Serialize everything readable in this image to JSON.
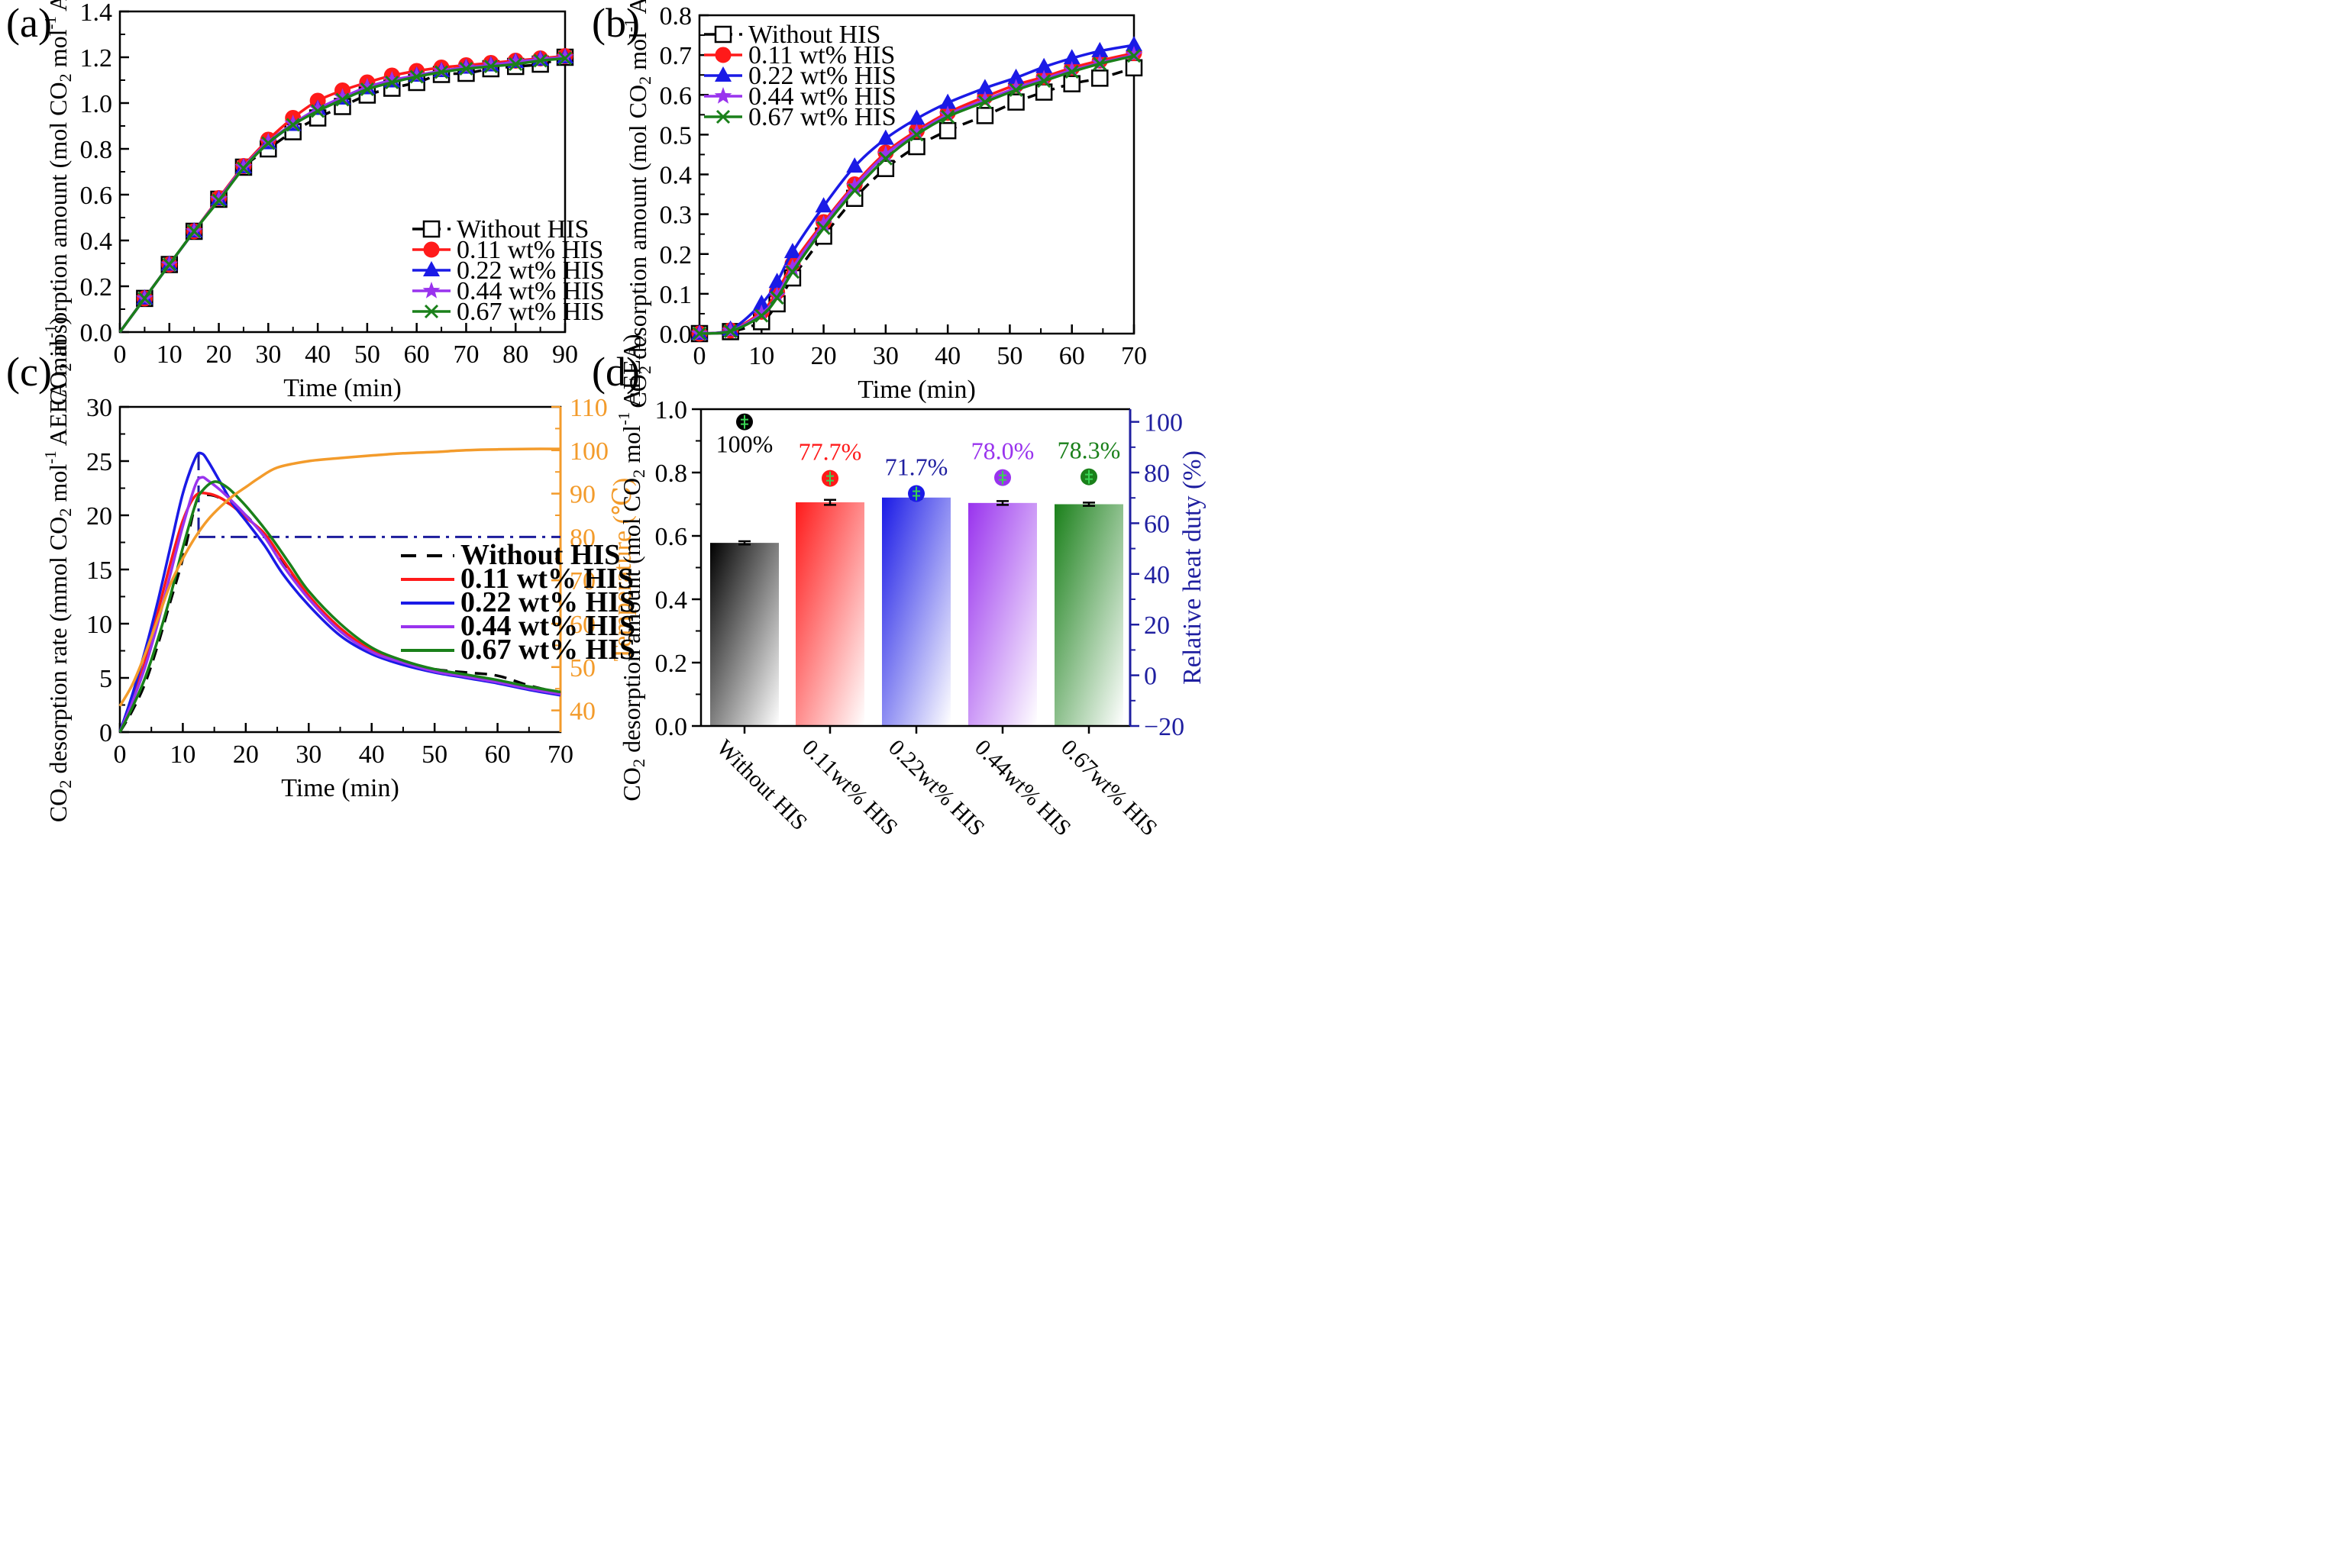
{
  "colors": {
    "black": "#000000",
    "red": "#ff1a1a",
    "blue": "#1a1ae6",
    "purple": "#9933ee",
    "green": "#1a801a",
    "orange": "#f39b2b",
    "navy": "#1f1fa0",
    "dashdot": "#1c1c9c"
  },
  "chart_data": [
    {
      "panel": "(a)",
      "type": "line",
      "xlabel": "Time (min)",
      "ylabel_parts": [
        "CO",
        "2",
        " absorption amount (mol CO",
        "2",
        " mol",
        "-1",
        " AEEA)"
      ],
      "xlim": [
        0,
        90
      ],
      "ylim": [
        0,
        1.4
      ],
      "xticks": [
        0,
        10,
        20,
        30,
        40,
        50,
        60,
        70,
        80,
        90
      ],
      "yticks": [
        0.0,
        0.2,
        0.4,
        0.6,
        0.8,
        1.0,
        1.2,
        1.4
      ],
      "ytick_labels": [
        "0.0",
        "0.2",
        "0.4",
        "0.6",
        "0.8",
        "1.0",
        "1.2",
        "1.4"
      ],
      "legend_position": "lower-right",
      "series": [
        {
          "name": "Without HIS",
          "color": "black",
          "dash": "dashed",
          "marker": "square-open",
          "x": [
            0,
            5,
            10,
            15,
            20,
            25,
            30,
            35,
            40,
            45,
            50,
            55,
            60,
            65,
            70,
            75,
            80,
            85,
            90
          ],
          "y": [
            0,
            0.147,
            0.295,
            0.44,
            0.58,
            0.72,
            0.8,
            0.875,
            0.935,
            0.985,
            1.035,
            1.065,
            1.09,
            1.125,
            1.13,
            1.15,
            1.16,
            1.17,
            1.2
          ]
        },
        {
          "name": "0.11 wt% HIS",
          "color": "red",
          "dash": "solid",
          "marker": "circle-filled",
          "x": [
            0,
            5,
            10,
            15,
            20,
            25,
            30,
            35,
            40,
            45,
            50,
            55,
            60,
            65,
            70,
            75,
            80,
            85,
            90
          ],
          "y": [
            0,
            0.147,
            0.295,
            0.44,
            0.585,
            0.725,
            0.84,
            0.935,
            1.01,
            1.055,
            1.09,
            1.12,
            1.14,
            1.155,
            1.165,
            1.175,
            1.185,
            1.195,
            1.205
          ]
        },
        {
          "name": "0.22 wt% HIS",
          "color": "blue",
          "dash": "solid",
          "marker": "triangle-filled",
          "x": [
            0,
            5,
            10,
            15,
            20,
            25,
            30,
            35,
            40,
            45,
            50,
            55,
            60,
            65,
            70,
            75,
            80,
            85,
            90
          ],
          "y": [
            0,
            0.147,
            0.295,
            0.44,
            0.58,
            0.72,
            0.825,
            0.905,
            0.975,
            1.02,
            1.065,
            1.095,
            1.12,
            1.14,
            1.155,
            1.165,
            1.18,
            1.19,
            1.2
          ]
        },
        {
          "name": "0.44 wt% HIS",
          "color": "purple",
          "dash": "solid",
          "marker": "star-filled",
          "x": [
            0,
            5,
            10,
            15,
            20,
            25,
            30,
            35,
            40,
            45,
            50,
            55,
            60,
            65,
            70,
            75,
            80,
            85,
            90
          ],
          "y": [
            0,
            0.147,
            0.295,
            0.44,
            0.58,
            0.72,
            0.83,
            0.91,
            0.975,
            1.025,
            1.07,
            1.1,
            1.12,
            1.14,
            1.155,
            1.165,
            1.18,
            1.19,
            1.2
          ]
        },
        {
          "name": "0.67 wt% HIS",
          "color": "green",
          "dash": "solid",
          "marker": "x",
          "x": [
            0,
            5,
            10,
            15,
            20,
            25,
            30,
            35,
            40,
            45,
            50,
            55,
            60,
            65,
            70,
            75,
            80,
            85,
            90
          ],
          "y": [
            0,
            0.147,
            0.295,
            0.44,
            0.575,
            0.715,
            0.825,
            0.905,
            0.965,
            1.015,
            1.06,
            1.09,
            1.115,
            1.135,
            1.15,
            1.16,
            1.17,
            1.185,
            1.195
          ]
        }
      ]
    },
    {
      "panel": "(b)",
      "type": "line",
      "xlabel": "Time (min)",
      "ylabel_parts": [
        "CO",
        "2",
        " desorption amount (mol CO",
        "2",
        " mol",
        "-1",
        " AEEA)"
      ],
      "xlim": [
        0,
        70
      ],
      "ylim": [
        0,
        0.8
      ],
      "xticks": [
        0,
        10,
        20,
        30,
        40,
        50,
        60,
        70
      ],
      "yticks": [
        0.0,
        0.1,
        0.2,
        0.3,
        0.4,
        0.5,
        0.6,
        0.7,
        0.8
      ],
      "ytick_labels": [
        "0.0",
        "0.1",
        "0.2",
        "0.3",
        "0.4",
        "0.5",
        "0.6",
        "0.7",
        "0.8"
      ],
      "legend_position": "top-left",
      "series": [
        {
          "name": "Without HIS",
          "color": "black",
          "dash": "dashed",
          "marker": "square-open",
          "x": [
            0,
            5,
            10,
            12.5,
            15,
            20,
            25,
            30,
            35,
            40,
            46,
            51,
            55.5,
            60,
            64.5,
            70
          ],
          "y": [
            0,
            0.005,
            0.03,
            0.075,
            0.14,
            0.245,
            0.34,
            0.415,
            0.47,
            0.51,
            0.548,
            0.582,
            0.607,
            0.628,
            0.642,
            0.668
          ]
        },
        {
          "name": "0.11 wt% HIS",
          "color": "red",
          "dash": "solid",
          "marker": "circle-filled",
          "x": [
            0,
            5,
            10,
            12.5,
            15,
            20,
            25,
            30,
            35,
            40,
            46,
            51,
            55.5,
            60,
            64.5,
            70
          ],
          "y": [
            0,
            0.008,
            0.055,
            0.105,
            0.175,
            0.28,
            0.375,
            0.455,
            0.51,
            0.555,
            0.595,
            0.625,
            0.645,
            0.668,
            0.686,
            0.705
          ]
        },
        {
          "name": "0.22 wt% HIS",
          "color": "blue",
          "dash": "solid",
          "marker": "triangle-filled",
          "x": [
            0,
            5,
            10,
            12.5,
            15,
            20,
            25,
            30,
            35,
            40,
            46,
            51,
            55.5,
            60,
            64.5,
            70
          ],
          "y": [
            0,
            0.01,
            0.075,
            0.13,
            0.205,
            0.32,
            0.42,
            0.49,
            0.54,
            0.58,
            0.617,
            0.643,
            0.67,
            0.692,
            0.71,
            0.725
          ]
        },
        {
          "name": "0.44 wt% HIS",
          "color": "purple",
          "dash": "solid",
          "marker": "star-filled",
          "x": [
            0,
            5,
            10,
            12.5,
            15,
            20,
            25,
            30,
            35,
            40,
            46,
            51,
            55.5,
            60,
            64.5,
            70
          ],
          "y": [
            0,
            0.007,
            0.05,
            0.095,
            0.165,
            0.275,
            0.37,
            0.45,
            0.505,
            0.55,
            0.587,
            0.617,
            0.64,
            0.662,
            0.68,
            0.7
          ]
        },
        {
          "name": "0.67 wt% HIS",
          "color": "green",
          "dash": "solid",
          "marker": "x",
          "x": [
            0,
            5,
            10,
            12.5,
            15,
            20,
            25,
            30,
            35,
            40,
            46,
            51,
            55.5,
            60,
            64.5,
            70
          ],
          "y": [
            0,
            0.006,
            0.045,
            0.09,
            0.155,
            0.265,
            0.36,
            0.44,
            0.5,
            0.545,
            0.582,
            0.612,
            0.635,
            0.658,
            0.678,
            0.698
          ]
        }
      ]
    },
    {
      "panel": "(c)",
      "type": "line",
      "xlabel": "Time (min)",
      "ylabel_parts": [
        "CO",
        "2",
        " desorption rate (mmol CO",
        "2",
        " mol",
        "-1",
        " AEEA min",
        "-1",
        ")"
      ],
      "y2label": "Temperature (℃)",
      "xlim": [
        0,
        70
      ],
      "ylim": [
        0,
        30
      ],
      "y2lim": [
        35,
        110
      ],
      "xticks": [
        0,
        10,
        20,
        30,
        40,
        50,
        60,
        70
      ],
      "yticks": [
        0,
        5,
        10,
        15,
        20,
        25,
        30
      ],
      "ytick_labels": [
        "0",
        "5",
        "10",
        "15",
        "20",
        "25",
        "30"
      ],
      "y2ticks": [
        40,
        50,
        60,
        70,
        80,
        90,
        100,
        110
      ],
      "y2tick_labels": [
        "40",
        "50",
        "60",
        "70",
        "80",
        "90",
        "100",
        "110"
      ],
      "legend_position": "center-right",
      "reference_line": {
        "y": 80,
        "axis": "y2",
        "style": "dash-dot",
        "color": "dashdot",
        "from_x": 12.5
      },
      "series": [
        {
          "name": "Without HIS",
          "color": "black",
          "dash": "dashed",
          "axis": "y",
          "x": [
            0,
            2,
            4,
            6,
            8,
            10,
            12,
            13,
            15,
            17,
            20,
            23,
            26,
            30,
            35,
            40,
            45,
            50,
            55,
            60,
            65,
            70
          ],
          "y": [
            0,
            2,
            4.5,
            8,
            12,
            16,
            21,
            21.8,
            21.8,
            21.2,
            20,
            18,
            15.5,
            12.3,
            9.5,
            7.5,
            6.5,
            5.8,
            5.5,
            5.2,
            4.3,
            3.6
          ]
        },
        {
          "name": "0.11 wt% HIS",
          "color": "red",
          "dash": "solid",
          "axis": "y",
          "x": [
            0,
            2,
            4,
            6,
            8,
            10,
            12,
            14,
            16,
            18,
            20,
            23,
            26,
            30,
            35,
            40,
            45,
            50,
            55,
            60,
            65,
            70
          ],
          "y": [
            0,
            3,
            6.5,
            11,
            15.5,
            19.5,
            21.8,
            22,
            21.6,
            20.8,
            19.8,
            18.3,
            15.8,
            12.6,
            9.6,
            7.6,
            6.6,
            5.7,
            5.2,
            4.6,
            4,
            3.5
          ]
        },
        {
          "name": "0.22 wt% HIS",
          "color": "blue",
          "dash": "solid",
          "axis": "y",
          "x": [
            0,
            2,
            4,
            6,
            8,
            10,
            12,
            13,
            14,
            16,
            18,
            20,
            23,
            26,
            30,
            35,
            40,
            45,
            50,
            55,
            60,
            65,
            70
          ],
          "y": [
            0,
            3.5,
            7.5,
            12,
            17,
            22,
            25.3,
            25.7,
            25,
            23,
            21,
            19.5,
            17.2,
            14.5,
            11.7,
            8.9,
            7.2,
            6.2,
            5.5,
            5,
            4.5,
            3.9,
            3.4
          ]
        },
        {
          "name": "0.44 wt% HIS",
          "color": "purple",
          "dash": "solid",
          "axis": "y",
          "x": [
            0,
            2,
            4,
            6,
            8,
            10,
            12,
            13,
            14,
            16,
            18,
            20,
            23,
            26,
            30,
            35,
            40,
            45,
            50,
            55,
            60,
            65,
            70
          ],
          "y": [
            0,
            2.8,
            6,
            10,
            14.5,
            19,
            22.8,
            23.5,
            23.2,
            22.3,
            21.2,
            20,
            18,
            15.3,
            12.3,
            9.3,
            7.4,
            6.4,
            5.6,
            5.1,
            4.6,
            4,
            3.5
          ]
        },
        {
          "name": "0.67 wt% HIS",
          "color": "green",
          "dash": "solid",
          "axis": "y",
          "x": [
            0,
            2,
            4,
            6,
            8,
            10,
            12,
            13,
            15,
            17,
            19,
            21,
            24,
            27,
            30,
            35,
            40,
            45,
            50,
            55,
            60,
            65,
            70
          ],
          "y": [
            0,
            2.3,
            5,
            8.5,
            12.5,
            17,
            21,
            22.2,
            23.1,
            22.6,
            21.5,
            20.2,
            18,
            15.5,
            13,
            10,
            7.8,
            6.6,
            5.8,
            5.3,
            4.8,
            4.2,
            3.7
          ]
        },
        {
          "name": "Temperature",
          "color": "orange",
          "dash": "solid",
          "axis": "y2",
          "in_legend": false,
          "x": [
            0,
            2,
            4,
            6,
            8,
            10,
            12,
            14,
            16,
            18,
            20,
            22,
            25,
            30,
            35,
            40,
            45,
            50,
            55,
            60,
            65,
            70
          ],
          "y": [
            41,
            46,
            53,
            61,
            69,
            75,
            80,
            84,
            87,
            89.5,
            91.5,
            93.5,
            96,
            97.5,
            98.2,
            98.8,
            99.3,
            99.6,
            100,
            100.2,
            100.3,
            100.3
          ]
        }
      ]
    },
    {
      "panel": "(d)",
      "type": "bar",
      "ylabel_parts": [
        "CO",
        "2",
        " desorption amount (mol CO",
        "2",
        " mol",
        "-1",
        " AEEA)"
      ],
      "y2label": "Relative heat duty (%)",
      "ylim": [
        0,
        1.0
      ],
      "y2lim": [
        -20,
        105
      ],
      "yticks": [
        0.0,
        0.2,
        0.4,
        0.6,
        0.8,
        1.0
      ],
      "ytick_labels": [
        "0.0",
        "0.2",
        "0.4",
        "0.6",
        "0.8",
        "1.0"
      ],
      "y2ticks": [
        -20,
        0,
        20,
        40,
        60,
        80,
        100
      ],
      "y2tick_labels": [
        "−20",
        "0",
        "20",
        "40",
        "60",
        "80",
        "100"
      ],
      "categories": [
        "Without HIS",
        "0.11wt% HIS",
        "0.22wt% HIS",
        "0.44wt% HIS",
        "0.67wt% HIS"
      ],
      "bar_colors": [
        "black",
        "red",
        "blue",
        "purple",
        "green"
      ],
      "values": [
        0.578,
        0.706,
        0.721,
        0.704,
        0.7
      ],
      "errors": [
        0.005,
        0.008,
        0.004,
        0.006,
        0.005
      ],
      "heat_duty_percent": [
        100,
        77.7,
        71.7,
        78.0,
        78.3
      ],
      "heat_duty_labels": [
        "100%",
        "77.7%",
        "71.7%",
        "78.0%",
        "78.3%"
      ],
      "heat_label_colors": [
        "black",
        "red",
        "navy",
        "purple",
        "green"
      ]
    }
  ]
}
